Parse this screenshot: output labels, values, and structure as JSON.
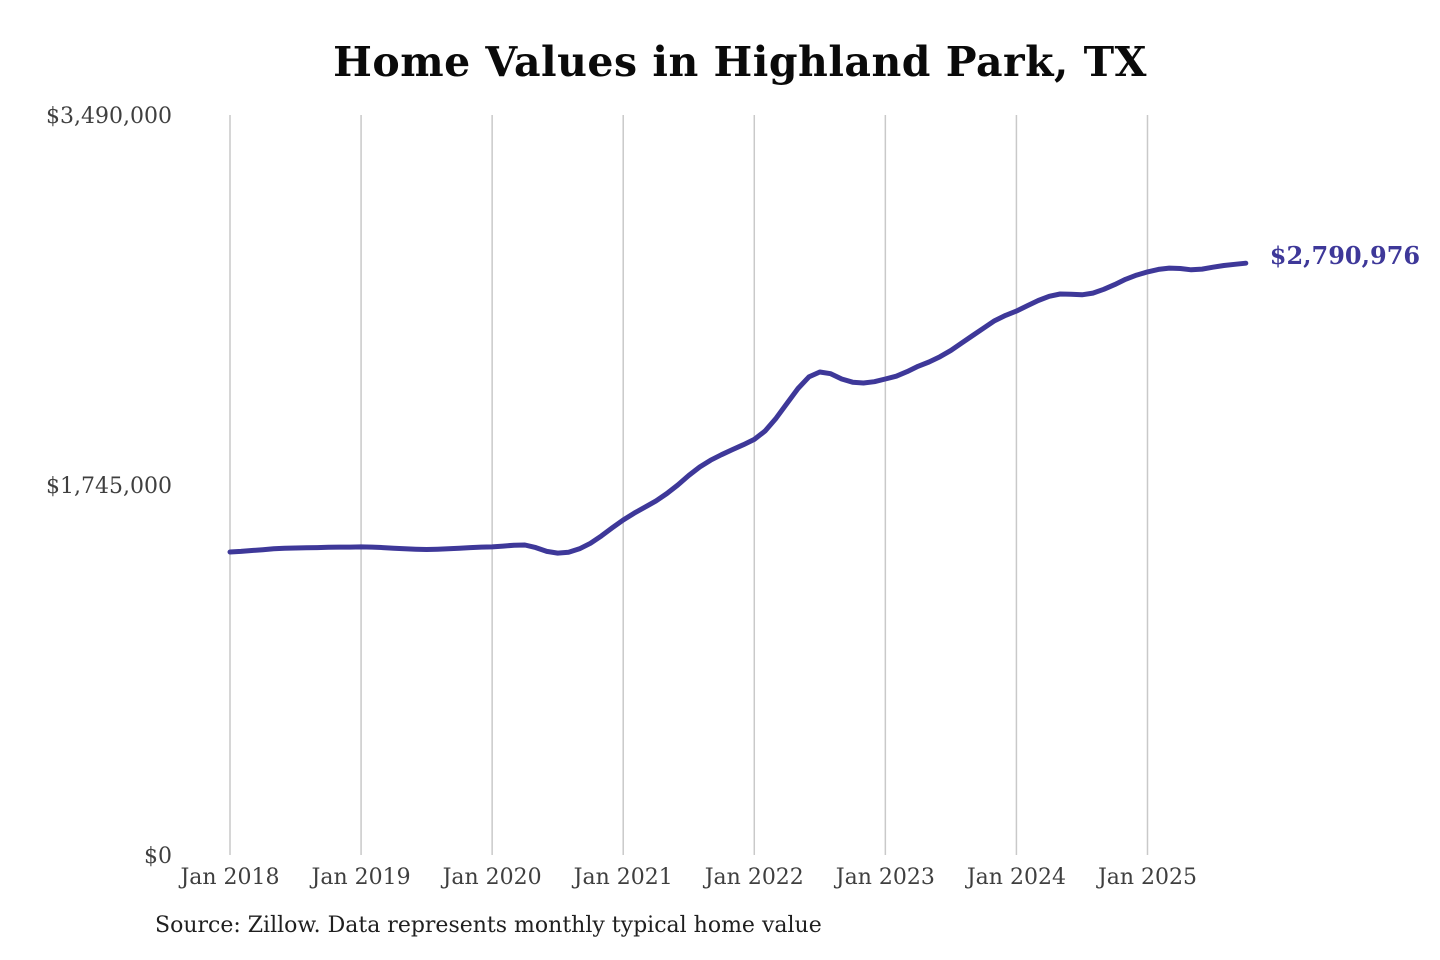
{
  "title": "Home Values in Highland Park, TX",
  "source_note": "Source: Zillow. Data represents monthly typical home value",
  "colors": {
    "line": "#3e3899",
    "grid": "#c9c9c9",
    "axis_label": "#3f3f3f",
    "title": "#0a0a0a",
    "source": "#1f1f1f",
    "background": "#ffffff"
  },
  "chart_data": {
    "type": "line",
    "title": "Home Values in Highland Park, TX",
    "xlabel": "",
    "ylabel": "",
    "ylim": [
      0,
      3490000
    ],
    "y_ticks": [
      0,
      1745000,
      3490000
    ],
    "y_tick_labels": [
      "$0",
      "$1,745,000",
      "$3,490,000"
    ],
    "x_start_month": "2018-01",
    "x_interval": "month",
    "x_tick_months": [
      0,
      12,
      24,
      36,
      48,
      60,
      72,
      84
    ],
    "x_tick_labels": [
      "Jan 2018",
      "Jan 2019",
      "Jan 2020",
      "Jan 2021",
      "Jan 2022",
      "Jan 2023",
      "Jan 2024",
      "Jan 2025"
    ],
    "grid": "vertical-only",
    "legend": "none",
    "end_label": "$2,790,976",
    "end_value": 2790976,
    "series": [
      {
        "name": "Monthly typical home value",
        "values": [
          1429000,
          1432000,
          1436000,
          1440000,
          1444000,
          1447000,
          1448000,
          1449000,
          1450000,
          1451000,
          1452000,
          1452000,
          1453000,
          1452000,
          1450000,
          1447000,
          1444000,
          1442000,
          1441000,
          1442000,
          1444000,
          1447000,
          1450000,
          1452000,
          1453000,
          1457000,
          1461000,
          1462000,
          1450000,
          1432000,
          1424000,
          1428000,
          1444000,
          1470000,
          1505000,
          1543000,
          1580000,
          1612000,
          1641000,
          1670000,
          1705000,
          1745000,
          1790000,
          1830000,
          1862000,
          1888000,
          1912000,
          1935000,
          1960000,
          2000000,
          2060000,
          2130000,
          2200000,
          2255000,
          2278000,
          2270000,
          2245000,
          2230000,
          2226000,
          2232000,
          2245000,
          2258000,
          2280000,
          2305000,
          2325000,
          2350000,
          2380000,
          2415000,
          2450000,
          2485000,
          2520000,
          2545000,
          2565000,
          2590000,
          2615000,
          2635000,
          2646000,
          2645000,
          2642000,
          2650000,
          2668000,
          2690000,
          2715000,
          2735000,
          2750000,
          2762000,
          2768000,
          2766000,
          2760000,
          2763000,
          2772000,
          2780000,
          2786000,
          2790976
        ]
      }
    ]
  }
}
